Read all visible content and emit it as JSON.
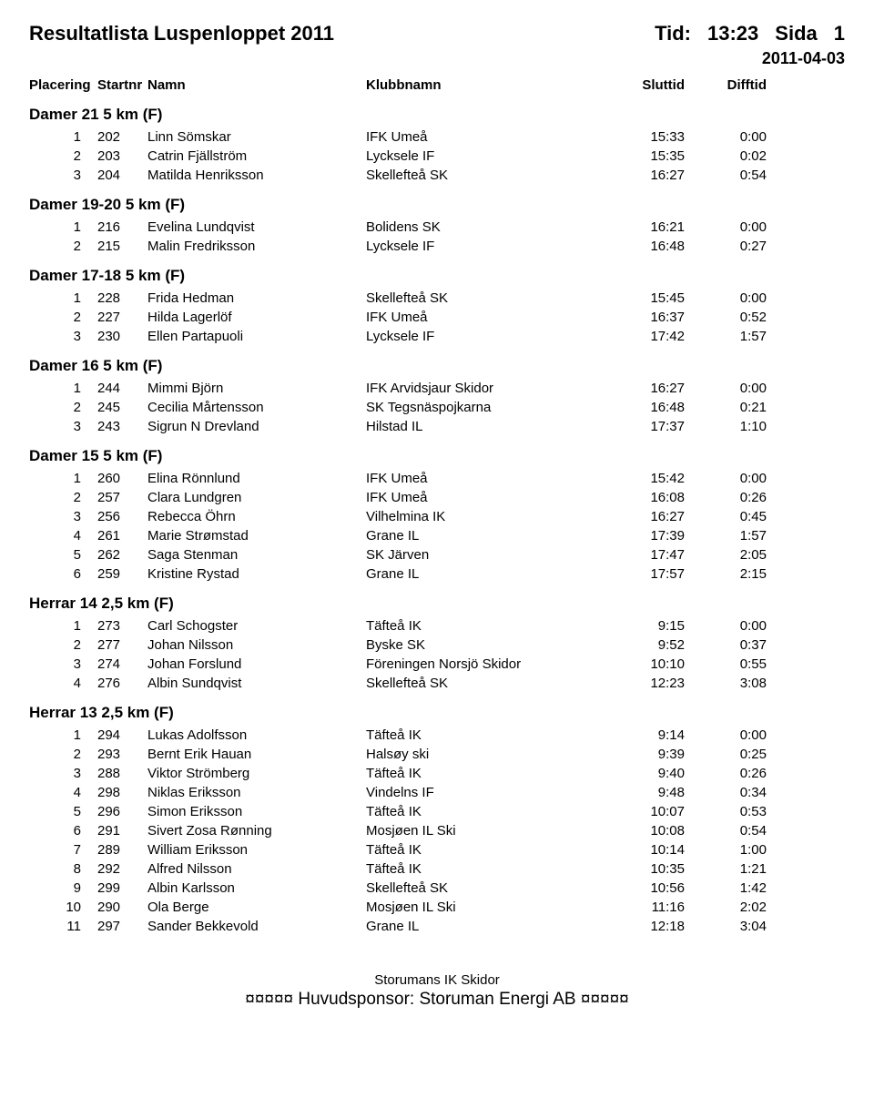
{
  "header": {
    "title_left": "Resultatlista   Luspenloppet 2011",
    "time_label": "Tid:",
    "time_value": "13:23",
    "page_label": "Sida",
    "page_value": "1",
    "date": "2011-04-03"
  },
  "columns": {
    "placering": "Placering",
    "startnr": "Startnr",
    "namn": "Namn",
    "klubbnamn": "Klubbnamn",
    "sluttid": "Sluttid",
    "difftid": "Difftid"
  },
  "categories": [
    {
      "title": "Damer 21  5 km  (F)",
      "rows": [
        {
          "plac": "1",
          "start": "202",
          "name": "Linn Sömskar",
          "club": "IFK Umeå",
          "slut": "15:33",
          "diff": "0:00"
        },
        {
          "plac": "2",
          "start": "203",
          "name": "Catrin Fjällström",
          "club": "Lycksele IF",
          "slut": "15:35",
          "diff": "0:02"
        },
        {
          "plac": "3",
          "start": "204",
          "name": "Matilda Henriksson",
          "club": "Skellefteå SK",
          "slut": "16:27",
          "diff": "0:54"
        }
      ]
    },
    {
      "title": "Damer 19-20  5 km  (F)",
      "rows": [
        {
          "plac": "1",
          "start": "216",
          "name": "Evelina Lundqvist",
          "club": "Bolidens SK",
          "slut": "16:21",
          "diff": "0:00"
        },
        {
          "plac": "2",
          "start": "215",
          "name": "Malin Fredriksson",
          "club": "Lycksele IF",
          "slut": "16:48",
          "diff": "0:27"
        }
      ]
    },
    {
      "title": "Damer 17-18  5 km  (F)",
      "rows": [
        {
          "plac": "1",
          "start": "228",
          "name": "Frida Hedman",
          "club": "Skellefteå SK",
          "slut": "15:45",
          "diff": "0:00"
        },
        {
          "plac": "2",
          "start": "227",
          "name": "Hilda Lagerlöf",
          "club": "IFK Umeå",
          "slut": "16:37",
          "diff": "0:52"
        },
        {
          "plac": "3",
          "start": "230",
          "name": "Ellen Partapuoli",
          "club": "Lycksele IF",
          "slut": "17:42",
          "diff": "1:57"
        }
      ]
    },
    {
      "title": "Damer 16  5 km  (F)",
      "rows": [
        {
          "plac": "1",
          "start": "244",
          "name": "Mimmi Björn",
          "club": "IFK Arvidsjaur Skidor",
          "slut": "16:27",
          "diff": "0:00"
        },
        {
          "plac": "2",
          "start": "245",
          "name": "Cecilia Mårtensson",
          "club": "SK Tegsnäspojkarna",
          "slut": "16:48",
          "diff": "0:21"
        },
        {
          "plac": "3",
          "start": "243",
          "name": "Sigrun N Drevland",
          "club": "Hilstad IL",
          "slut": "17:37",
          "diff": "1:10"
        }
      ]
    },
    {
      "title": "Damer 15  5 km  (F)",
      "rows": [
        {
          "plac": "1",
          "start": "260",
          "name": "Elina Rönnlund",
          "club": "IFK Umeå",
          "slut": "15:42",
          "diff": "0:00"
        },
        {
          "plac": "2",
          "start": "257",
          "name": "Clara Lundgren",
          "club": "IFK Umeå",
          "slut": "16:08",
          "diff": "0:26"
        },
        {
          "plac": "3",
          "start": "256",
          "name": "Rebecca Öhrn",
          "club": "Vilhelmina IK",
          "slut": "16:27",
          "diff": "0:45"
        },
        {
          "plac": "4",
          "start": "261",
          "name": "Marie Strømstad",
          "club": "Grane IL",
          "slut": "17:39",
          "diff": "1:57"
        },
        {
          "plac": "5",
          "start": "262",
          "name": "Saga Stenman",
          "club": "SK Järven",
          "slut": "17:47",
          "diff": "2:05"
        },
        {
          "plac": "6",
          "start": "259",
          "name": "Kristine Rystad",
          "club": "Grane IL",
          "slut": "17:57",
          "diff": "2:15"
        }
      ]
    },
    {
      "title": "Herrar 14  2,5 km  (F)",
      "rows": [
        {
          "plac": "1",
          "start": "273",
          "name": "Carl Schogster",
          "club": "Täfteå IK",
          "slut": "9:15",
          "diff": "0:00"
        },
        {
          "plac": "2",
          "start": "277",
          "name": "Johan Nilsson",
          "club": "Byske SK",
          "slut": "9:52",
          "diff": "0:37"
        },
        {
          "plac": "3",
          "start": "274",
          "name": "Johan Forslund",
          "club": "Föreningen Norsjö Skidor",
          "slut": "10:10",
          "diff": "0:55"
        },
        {
          "plac": "4",
          "start": "276",
          "name": "Albin Sundqvist",
          "club": "Skellefteå SK",
          "slut": "12:23",
          "diff": "3:08"
        }
      ]
    },
    {
      "title": "Herrar 13  2,5 km  (F)",
      "rows": [
        {
          "plac": "1",
          "start": "294",
          "name": "Lukas Adolfsson",
          "club": "Täfteå IK",
          "slut": "9:14",
          "diff": "0:00"
        },
        {
          "plac": "2",
          "start": "293",
          "name": "Bernt Erik Hauan",
          "club": "Halsøy ski",
          "slut": "9:39",
          "diff": "0:25"
        },
        {
          "plac": "3",
          "start": "288",
          "name": "Viktor Strömberg",
          "club": "Täfteå IK",
          "slut": "9:40",
          "diff": "0:26"
        },
        {
          "plac": "4",
          "start": "298",
          "name": "Niklas Eriksson",
          "club": "Vindelns IF",
          "slut": "9:48",
          "diff": "0:34"
        },
        {
          "plac": "5",
          "start": "296",
          "name": "Simon Eriksson",
          "club": "Täfteå IK",
          "slut": "10:07",
          "diff": "0:53"
        },
        {
          "plac": "6",
          "start": "291",
          "name": "Sivert Zosa Rønning",
          "club": "Mosjøen IL Ski",
          "slut": "10:08",
          "diff": "0:54"
        },
        {
          "plac": "7",
          "start": "289",
          "name": "William Eriksson",
          "club": "Täfteå IK",
          "slut": "10:14",
          "diff": "1:00"
        },
        {
          "plac": "8",
          "start": "292",
          "name": "Alfred Nilsson",
          "club": "Täfteå IK",
          "slut": "10:35",
          "diff": "1:21"
        },
        {
          "plac": "9",
          "start": "299",
          "name": "Albin Karlsson",
          "club": "Skellefteå SK",
          "slut": "10:56",
          "diff": "1:42"
        },
        {
          "plac": "10",
          "start": "290",
          "name": "Ola Berge",
          "club": "Mosjøen IL Ski",
          "slut": "11:16",
          "diff": "2:02"
        },
        {
          "plac": "11",
          "start": "297",
          "name": "Sander Bekkevold",
          "club": "Grane IL",
          "slut": "12:18",
          "diff": "3:04"
        }
      ]
    }
  ],
  "footer": {
    "org": "Storumans IK Skidor",
    "sponsor_line": "¤¤¤¤¤   Huvudsponsor:  Storuman Energi AB   ¤¤¤¤¤"
  }
}
